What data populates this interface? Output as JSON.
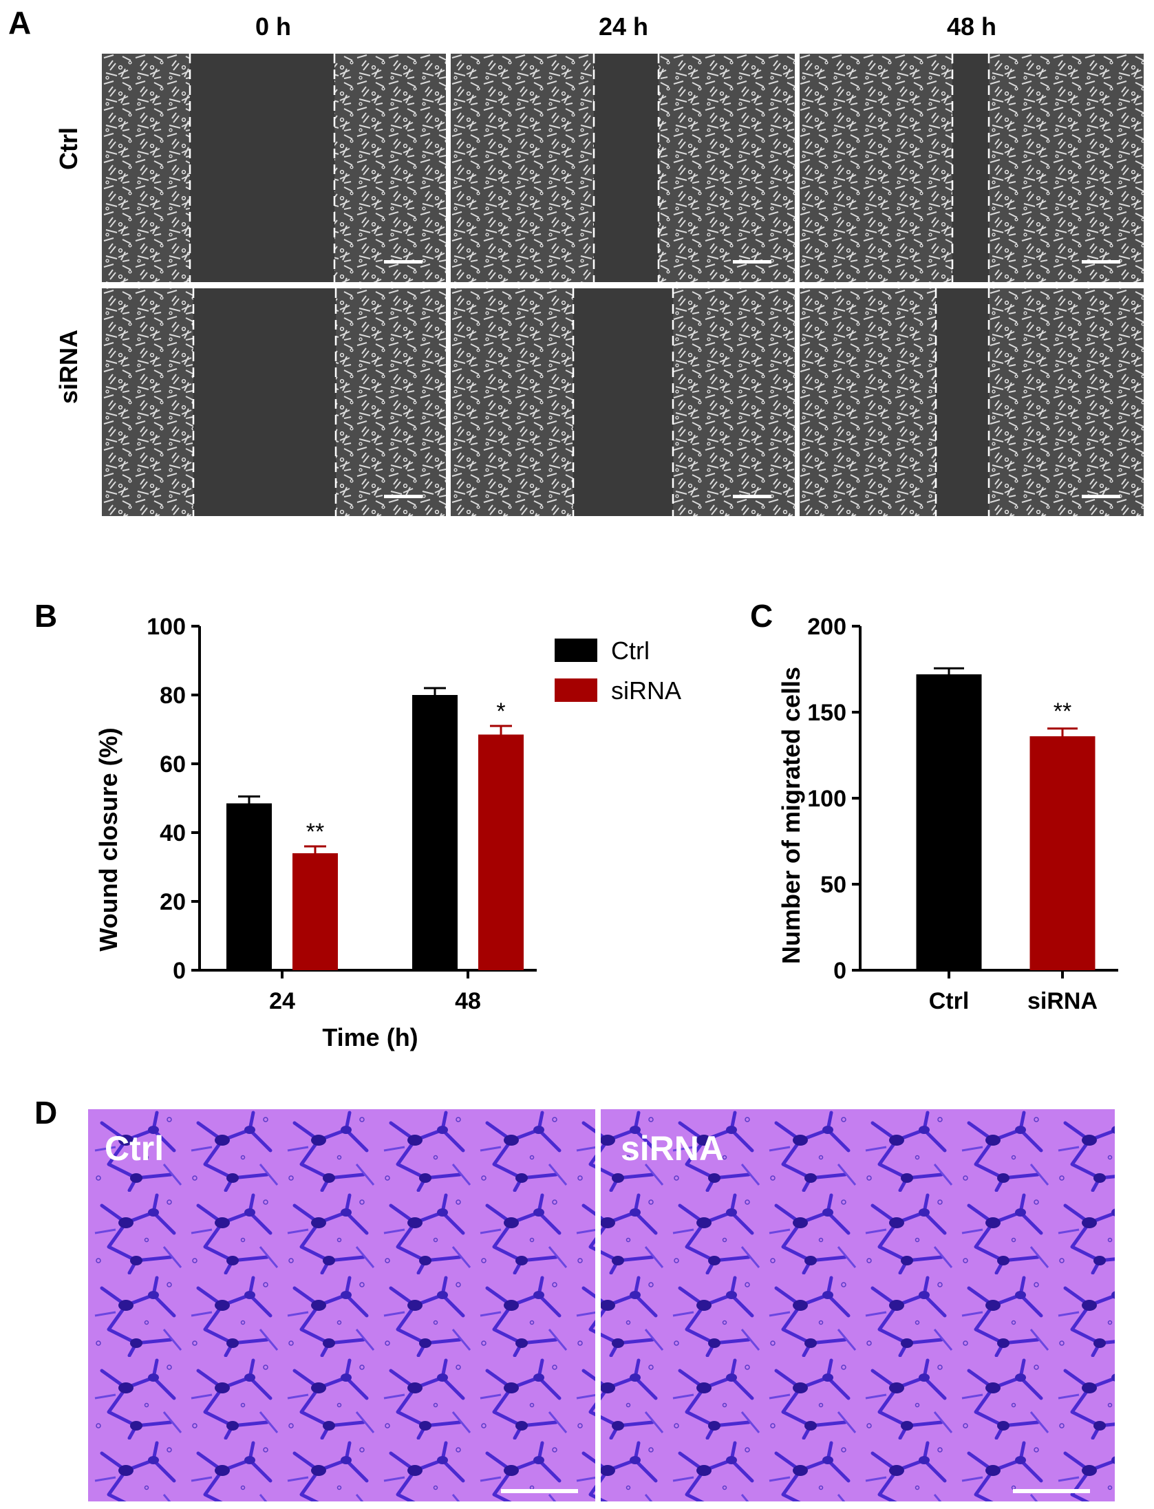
{
  "panel_a": {
    "letter": "A",
    "columns": [
      "0 h",
      "24 h",
      "48 h"
    ],
    "rows": [
      "Ctrl",
      "siRNA"
    ]
  },
  "panel_b": {
    "letter": "B",
    "legend": [
      "Ctrl",
      "siRNA"
    ],
    "significance": [
      "**",
      "*"
    ]
  },
  "panel_c": {
    "letter": "C",
    "significance": [
      "**"
    ]
  },
  "panel_d": {
    "letter": "D",
    "labels": [
      "Ctrl",
      "siRNA"
    ]
  },
  "colors": {
    "ctrl": "#000000",
    "sirna": "#a50000",
    "micro_bg": "#3a3a3a",
    "stain_bg": "#c57ef0",
    "stain_cell": "#3c1fbf"
  },
  "chart_data": [
    {
      "type": "bar",
      "title": "",
      "xlabel": "Time (h)",
      "ylabel": "Wound closure (%)",
      "categories": [
        "24",
        "48"
      ],
      "ylim": [
        0,
        100
      ],
      "yticks": [
        "0",
        "20",
        "40",
        "60",
        "80",
        "100"
      ],
      "series": [
        {
          "name": "Ctrl",
          "values": [
            48.5,
            80
          ],
          "errors": [
            2,
            2
          ]
        },
        {
          "name": "siRNA",
          "values": [
            34,
            68.5
          ],
          "errors": [
            2,
            2.5
          ]
        }
      ],
      "legend_position": "top-right",
      "grid": false
    },
    {
      "type": "bar",
      "title": "",
      "xlabel": "",
      "ylabel": "Number of migrated cells",
      "categories": [
        "Ctrl",
        "siRNA"
      ],
      "ylim": [
        0,
        200
      ],
      "yticks": [
        "0",
        "50",
        "100",
        "150",
        "200"
      ],
      "series": [
        {
          "values": [
            172,
            136
          ],
          "errors": [
            3.5,
            4.5
          ]
        }
      ],
      "grid": false
    }
  ]
}
